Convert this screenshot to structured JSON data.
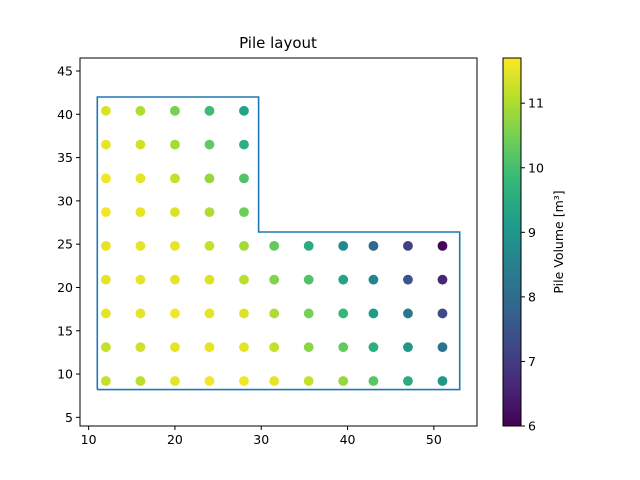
{
  "chart_data": {
    "type": "scatter",
    "title": "Pile layout",
    "xlabel": "",
    "ylabel": "",
    "xlim": [
      9.0,
      55.0
    ],
    "ylim": [
      4.0,
      46.5
    ],
    "xticks": [
      10,
      20,
      30,
      40,
      50
    ],
    "yticks": [
      5,
      10,
      15,
      20,
      25,
      30,
      35,
      40,
      45
    ],
    "grid": false,
    "colormap": "viridis",
    "colorbar": {
      "label": "Pile Volume [m³]",
      "range": [
        6,
        11.7
      ],
      "ticks": [
        6,
        7,
        8,
        9,
        10,
        11
      ]
    },
    "outline": {
      "color": "#1f77b4",
      "points": [
        [
          11,
          8.2
        ],
        [
          53,
          8.2
        ],
        [
          53,
          26.4
        ],
        [
          29.7,
          26.4
        ],
        [
          29.7,
          42
        ],
        [
          11,
          42
        ],
        [
          11,
          8.2
        ]
      ]
    },
    "piles": [
      {
        "x": 12,
        "y": 9.2,
        "value": 11.2
      },
      {
        "x": 16,
        "y": 9.2,
        "value": 11.1
      },
      {
        "x": 20,
        "y": 9.2,
        "value": 11.5
      },
      {
        "x": 24,
        "y": 9.2,
        "value": 11.6
      },
      {
        "x": 28,
        "y": 9.2,
        "value": 11.6
      },
      {
        "x": 31.5,
        "y": 9.2,
        "value": 11.5
      },
      {
        "x": 35.5,
        "y": 9.2,
        "value": 11.2
      },
      {
        "x": 39.5,
        "y": 9.2,
        "value": 10.8
      },
      {
        "x": 43,
        "y": 9.2,
        "value": 10.2
      },
      {
        "x": 47,
        "y": 9.2,
        "value": 9.5
      },
      {
        "x": 51,
        "y": 9.2,
        "value": 9.0
      },
      {
        "x": 12,
        "y": 13.1,
        "value": 11.2
      },
      {
        "x": 16,
        "y": 13.1,
        "value": 11.3
      },
      {
        "x": 20,
        "y": 13.1,
        "value": 11.5
      },
      {
        "x": 24,
        "y": 13.1,
        "value": 11.5
      },
      {
        "x": 28,
        "y": 13.1,
        "value": 11.5
      },
      {
        "x": 31.5,
        "y": 13.1,
        "value": 11.2
      },
      {
        "x": 35.5,
        "y": 13.1,
        "value": 10.7
      },
      {
        "x": 39.5,
        "y": 13.1,
        "value": 10.3
      },
      {
        "x": 43,
        "y": 13.1,
        "value": 9.6
      },
      {
        "x": 47,
        "y": 13.1,
        "value": 9.0
      },
      {
        "x": 51,
        "y": 13.1,
        "value": 8.2
      },
      {
        "x": 12,
        "y": 17,
        "value": 11.5
      },
      {
        "x": 16,
        "y": 17,
        "value": 11.5
      },
      {
        "x": 20,
        "y": 17,
        "value": 11.6
      },
      {
        "x": 24,
        "y": 17,
        "value": 11.5
      },
      {
        "x": 28,
        "y": 17,
        "value": 11.4
      },
      {
        "x": 31.5,
        "y": 17,
        "value": 11.0
      },
      {
        "x": 35.5,
        "y": 17,
        "value": 10.5
      },
      {
        "x": 39.5,
        "y": 17,
        "value": 9.8
      },
      {
        "x": 43,
        "y": 17,
        "value": 9.1
      },
      {
        "x": 47,
        "y": 17,
        "value": 8.3
      },
      {
        "x": 51,
        "y": 17,
        "value": 7.3
      },
      {
        "x": 12,
        "y": 20.9,
        "value": 11.5
      },
      {
        "x": 16,
        "y": 20.9,
        "value": 11.5
      },
      {
        "x": 20,
        "y": 20.9,
        "value": 11.5
      },
      {
        "x": 24,
        "y": 20.9,
        "value": 11.4
      },
      {
        "x": 28,
        "y": 20.9,
        "value": 11.1
      },
      {
        "x": 31.5,
        "y": 20.9,
        "value": 10.6
      },
      {
        "x": 35.5,
        "y": 20.9,
        "value": 10.1
      },
      {
        "x": 39.5,
        "y": 20.9,
        "value": 9.3
      },
      {
        "x": 43,
        "y": 20.9,
        "value": 8.6
      },
      {
        "x": 47,
        "y": 20.9,
        "value": 7.5
      },
      {
        "x": 51,
        "y": 20.9,
        "value": 6.6
      },
      {
        "x": 12,
        "y": 24.8,
        "value": 11.5
      },
      {
        "x": 16,
        "y": 24.8,
        "value": 11.5
      },
      {
        "x": 20,
        "y": 24.8,
        "value": 11.5
      },
      {
        "x": 24,
        "y": 24.8,
        "value": 11.2
      },
      {
        "x": 28,
        "y": 24.8,
        "value": 10.9
      },
      {
        "x": 31.5,
        "y": 24.8,
        "value": 10.3
      },
      {
        "x": 35.5,
        "y": 24.8,
        "value": 9.5
      },
      {
        "x": 39.5,
        "y": 24.8,
        "value": 8.7
      },
      {
        "x": 43,
        "y": 24.8,
        "value": 7.9
      },
      {
        "x": 47,
        "y": 24.8,
        "value": 7.1
      },
      {
        "x": 51,
        "y": 24.8,
        "value": 6.1
      },
      {
        "x": 12,
        "y": 28.7,
        "value": 11.6
      },
      {
        "x": 16,
        "y": 28.7,
        "value": 11.5
      },
      {
        "x": 20,
        "y": 28.7,
        "value": 11.4
      },
      {
        "x": 24,
        "y": 28.7,
        "value": 11.0
      },
      {
        "x": 28,
        "y": 28.7,
        "value": 10.4
      },
      {
        "x": 12,
        "y": 32.6,
        "value": 11.6
      },
      {
        "x": 16,
        "y": 32.6,
        "value": 11.5
      },
      {
        "x": 20,
        "y": 32.6,
        "value": 11.2
      },
      {
        "x": 24,
        "y": 32.6,
        "value": 10.8
      },
      {
        "x": 28,
        "y": 32.6,
        "value": 10.1
      },
      {
        "x": 12,
        "y": 36.5,
        "value": 11.5
      },
      {
        "x": 16,
        "y": 36.5,
        "value": 11.3
      },
      {
        "x": 20,
        "y": 36.5,
        "value": 10.9
      },
      {
        "x": 24,
        "y": 36.5,
        "value": 10.3
      },
      {
        "x": 28,
        "y": 36.5,
        "value": 9.6
      },
      {
        "x": 12,
        "y": 40.4,
        "value": 11.4
      },
      {
        "x": 16,
        "y": 40.4,
        "value": 11.0
      },
      {
        "x": 20,
        "y": 40.4,
        "value": 10.5
      },
      {
        "x": 24,
        "y": 40.4,
        "value": 9.9
      },
      {
        "x": 28,
        "y": 40.4,
        "value": 9.3
      }
    ]
  }
}
